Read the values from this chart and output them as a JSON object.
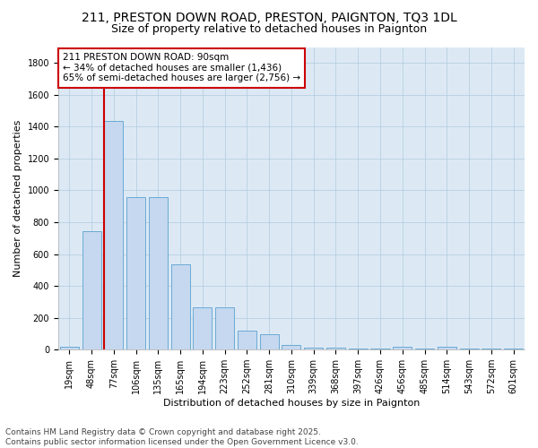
{
  "title": "211, PRESTON DOWN ROAD, PRESTON, PAIGNTON, TQ3 1DL",
  "subtitle": "Size of property relative to detached houses in Paignton",
  "xlabel": "Distribution of detached houses by size in Paignton",
  "ylabel": "Number of detached properties",
  "categories": [
    "19sqm",
    "48sqm",
    "77sqm",
    "106sqm",
    "135sqm",
    "165sqm",
    "194sqm",
    "223sqm",
    "252sqm",
    "281sqm",
    "310sqm",
    "339sqm",
    "368sqm",
    "397sqm",
    "426sqm",
    "456sqm",
    "485sqm",
    "514sqm",
    "543sqm",
    "572sqm",
    "601sqm"
  ],
  "values": [
    20,
    745,
    1436,
    960,
    960,
    535,
    265,
    265,
    120,
    95,
    30,
    15,
    10,
    5,
    5,
    20,
    5,
    20,
    5,
    5,
    5
  ],
  "bar_color": "#c5d8ef",
  "bar_edge_color": "#6aaad4",
  "axes_bg_color": "#dce9f5",
  "background_color": "#ffffff",
  "grid_color": "#b8cfe0",
  "vline_x_index": 2,
  "vline_color": "#cc0000",
  "annotation_text": "211 PRESTON DOWN ROAD: 90sqm\n← 34% of detached houses are smaller (1,436)\n65% of semi-detached houses are larger (2,756) →",
  "annotation_box_facecolor": "#ffffff",
  "annotation_box_edgecolor": "#cc0000",
  "footer": "Contains HM Land Registry data © Crown copyright and database right 2025.\nContains public sector information licensed under the Open Government Licence v3.0.",
  "ylim": [
    0,
    1900
  ],
  "yticks": [
    0,
    200,
    400,
    600,
    800,
    1000,
    1200,
    1400,
    1600,
    1800
  ],
  "title_fontsize": 10,
  "subtitle_fontsize": 9,
  "axis_label_fontsize": 8,
  "tick_fontsize": 7,
  "annotation_fontsize": 7.5,
  "footer_fontsize": 6.5
}
